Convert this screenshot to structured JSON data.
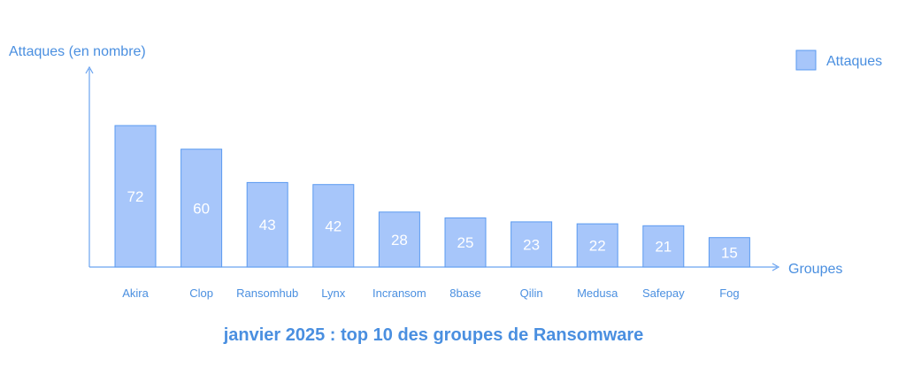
{
  "chart_data": {
    "type": "bar",
    "title": "janvier 2025 : top 10 des groupes de Ransomware",
    "ylabel": "Attaques (en nombre)",
    "xlabel": "Groupes",
    "categories": [
      "Akira",
      "Clop",
      "Ransomhub",
      "Lynx",
      "Incransom",
      "8base",
      "Qilin",
      "Medusa",
      "Safepay",
      "Fog"
    ],
    "series": [
      {
        "name": "Attaques",
        "values": [
          72,
          60,
          43,
          42,
          28,
          25,
          23,
          22,
          21,
          15
        ]
      }
    ],
    "ylim": [
      0,
      100
    ],
    "grid": false,
    "legend_position": "top-right",
    "data_labels": true
  },
  "colors": {
    "bar_fill": "#a7c6fa",
    "bar_stroke": "#5a9af0",
    "axis": "#6aa3f0",
    "text": "#4a8fe0",
    "value_label": "#ffffff"
  }
}
